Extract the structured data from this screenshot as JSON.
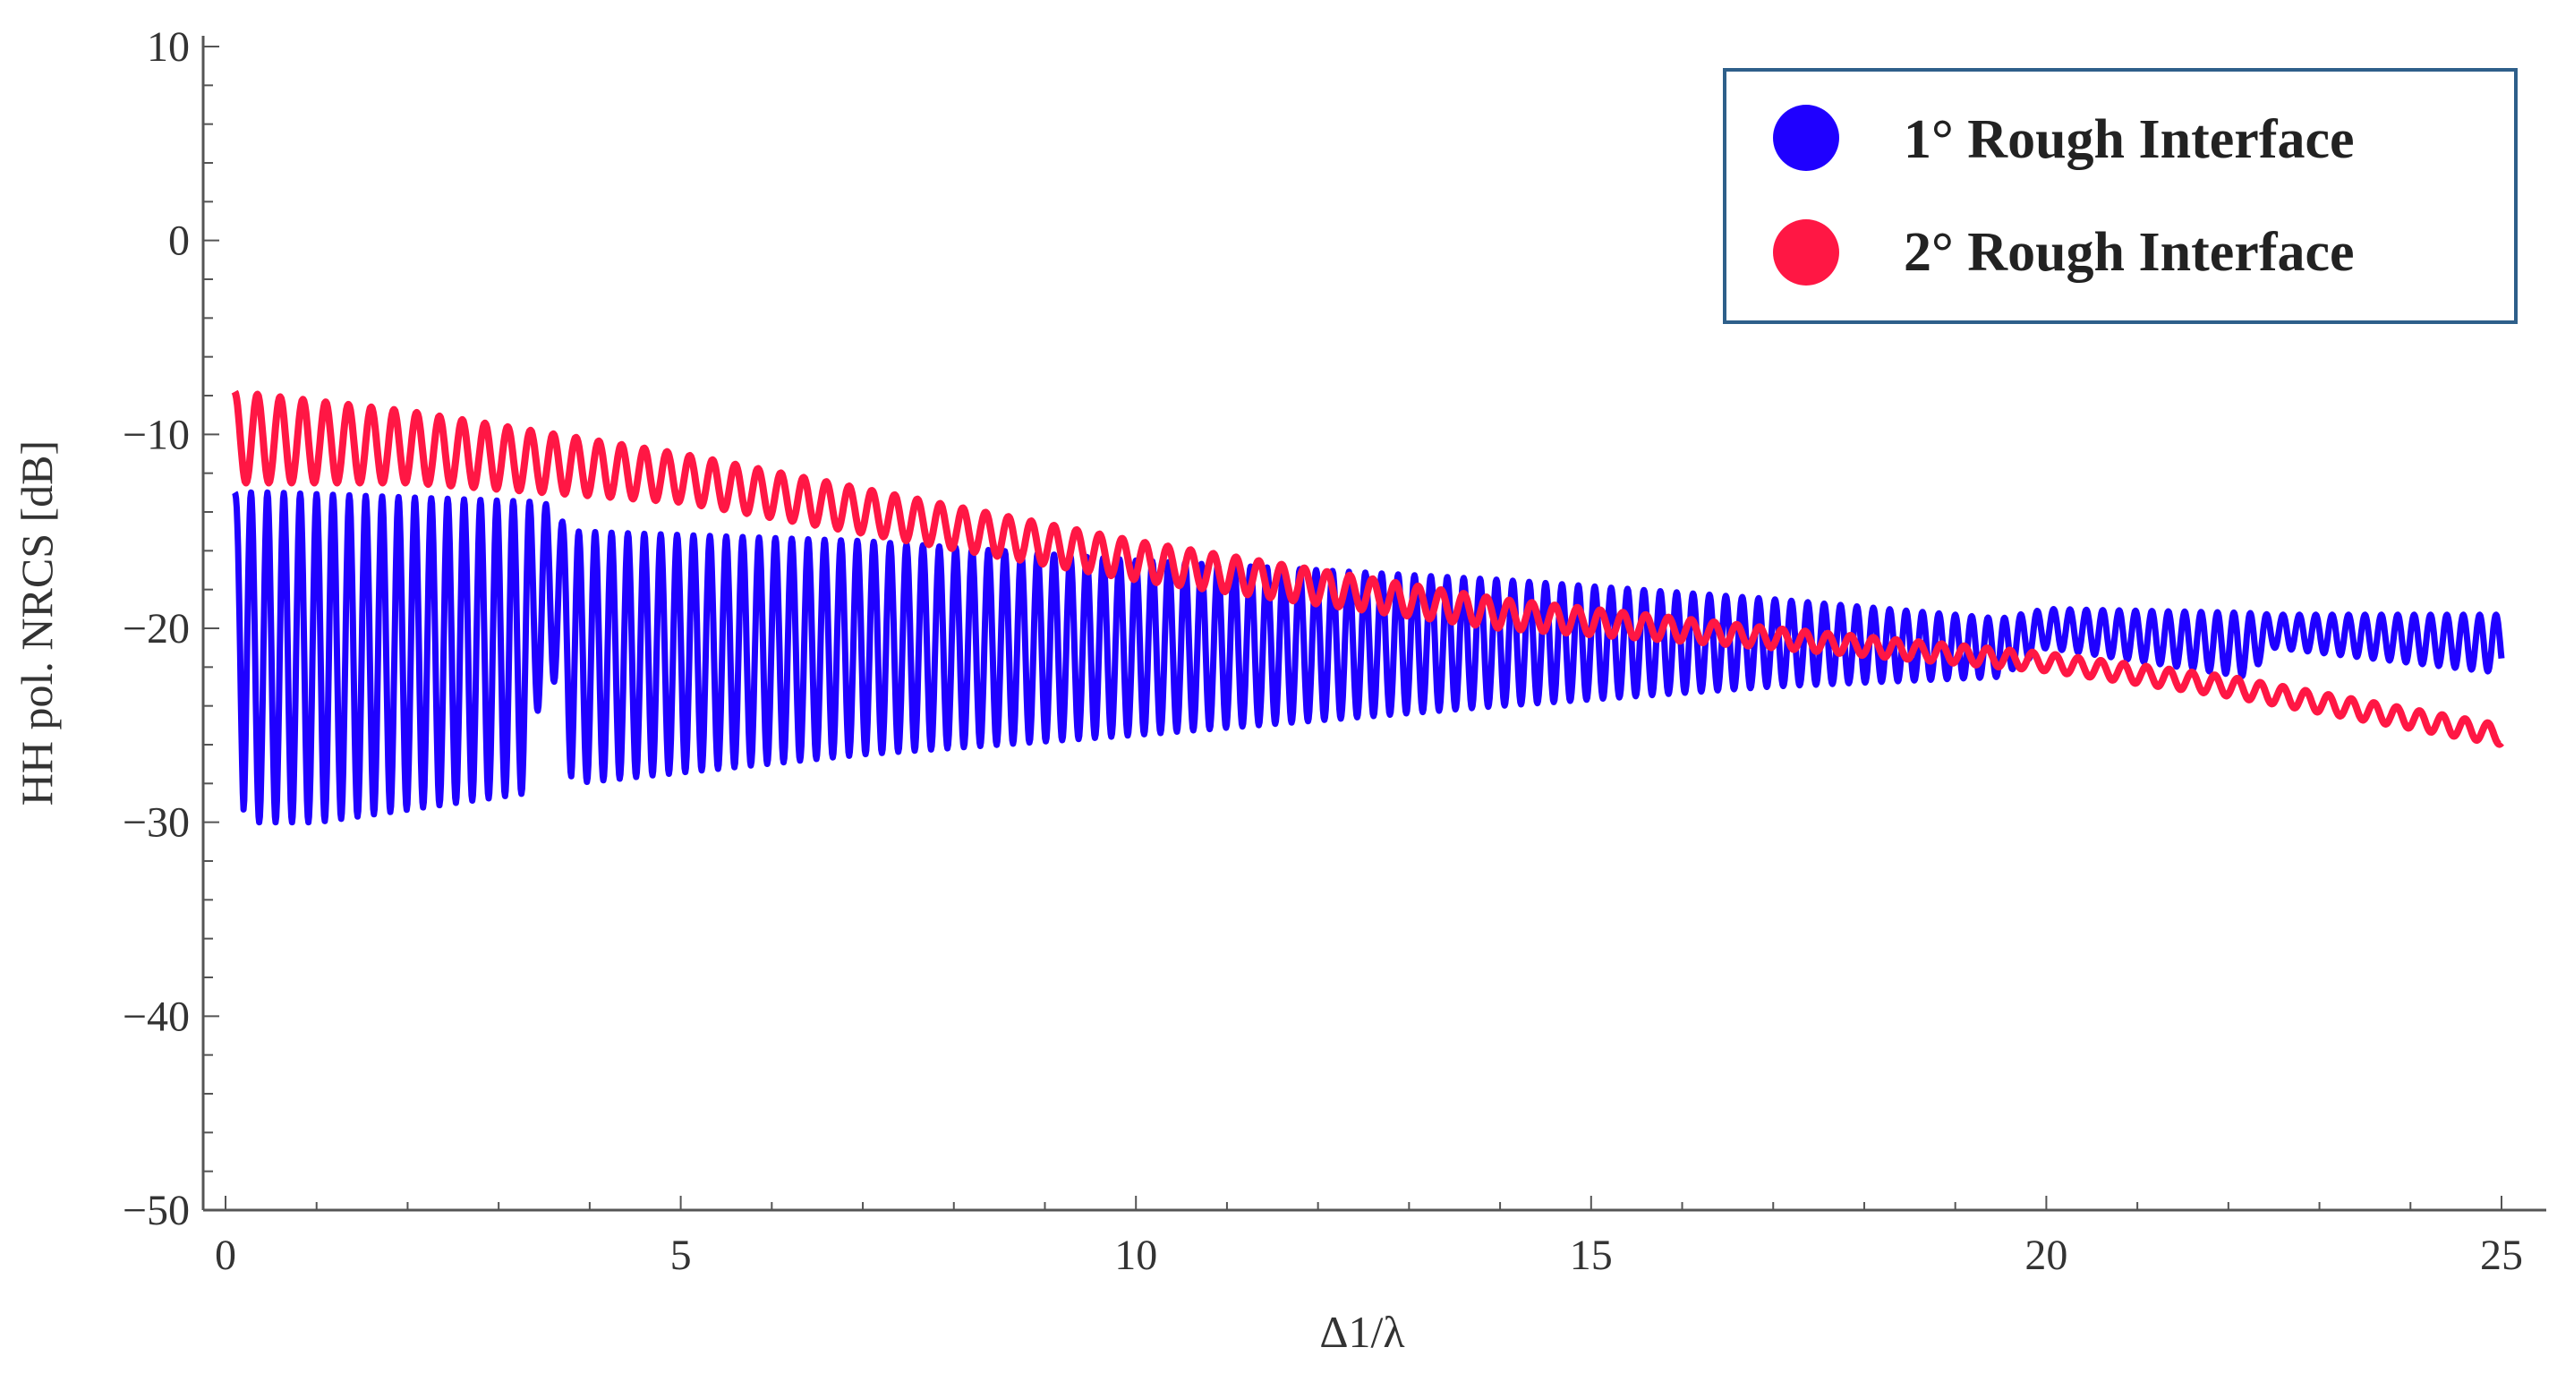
{
  "chart_data": {
    "type": "line",
    "title": "",
    "xlabel": "Δ1/λ",
    "ylabel": "HH pol. NRCS [dB]",
    "xlim": [
      0,
      25
    ],
    "ylim": [
      -50,
      10
    ],
    "xticks": [
      0,
      5,
      10,
      15,
      20,
      25
    ],
    "yticks": [
      10,
      0,
      -10,
      -20,
      -30,
      -40,
      -50
    ],
    "xtick_labels": [
      "0",
      "5",
      "10",
      "15",
      "20",
      "25"
    ],
    "ytick_labels": [
      "10",
      "0",
      "−10",
      "−20",
      "−30",
      "−40",
      "−50"
    ],
    "grid": false,
    "legend_position": "top-right",
    "series": [
      {
        "name": "1° Rough Interface",
        "color": "#1f00ff",
        "style": "dense oscillation",
        "x_range": [
          0.1,
          25
        ],
        "oscillation_period": 0.18,
        "upper_envelope": [
          [
            0.1,
            -13
          ],
          [
            0.5,
            -13
          ],
          [
            3.5,
            -13.5
          ],
          [
            3.8,
            -15
          ],
          [
            7,
            -15.5
          ],
          [
            10,
            -16.5
          ],
          [
            14,
            -17.5
          ],
          [
            17,
            -18.5
          ],
          [
            19.5,
            -19.5
          ],
          [
            20,
            -19
          ],
          [
            22.2,
            -19.2
          ],
          [
            22.5,
            -19.3
          ],
          [
            25,
            -19.3
          ]
        ],
        "lower_envelope": [
          [
            0.1,
            -15
          ],
          [
            0.2,
            -30
          ],
          [
            1,
            -30
          ],
          [
            3.3,
            -28.5
          ],
          [
            3.4,
            -24.5
          ],
          [
            3.7,
            -22
          ],
          [
            3.8,
            -28
          ],
          [
            7,
            -26.5
          ],
          [
            10,
            -25.5
          ],
          [
            14,
            -24
          ],
          [
            17,
            -23
          ],
          [
            19.5,
            -22.5
          ],
          [
            20,
            -21
          ],
          [
            22.2,
            -22.5
          ],
          [
            22.5,
            -21
          ],
          [
            25,
            -22.3
          ]
        ]
      },
      {
        "name": "2° Rough Interface",
        "color": "#ff1744",
        "style": "oscillation",
        "x_range": [
          0.1,
          25
        ],
        "oscillation_period": 0.25,
        "upper_envelope": [
          [
            0.1,
            -7.8
          ],
          [
            2,
            -8.8
          ],
          [
            5,
            -11
          ],
          [
            10,
            -15.5
          ],
          [
            14,
            -18.5
          ],
          [
            17,
            -20
          ],
          [
            20,
            -21.3
          ],
          [
            22,
            -22.5
          ],
          [
            25,
            -25
          ]
        ],
        "lower_envelope": [
          [
            0.1,
            -12.5
          ],
          [
            2,
            -12.5
          ],
          [
            5,
            -13.5
          ],
          [
            10,
            -17.5
          ],
          [
            14,
            -20
          ],
          [
            17,
            -21
          ],
          [
            20,
            -22.2
          ],
          [
            22,
            -23.5
          ],
          [
            25,
            -26
          ]
        ]
      }
    ]
  }
}
